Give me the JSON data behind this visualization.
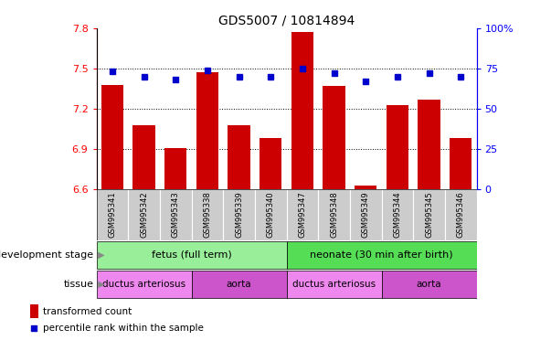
{
  "title": "GDS5007 / 10814894",
  "samples": [
    "GSM995341",
    "GSM995342",
    "GSM995343",
    "GSM995338",
    "GSM995339",
    "GSM995340",
    "GSM995347",
    "GSM995348",
    "GSM995349",
    "GSM995344",
    "GSM995345",
    "GSM995346"
  ],
  "bar_values": [
    7.38,
    7.08,
    6.91,
    7.47,
    7.08,
    6.98,
    7.77,
    7.37,
    6.63,
    7.23,
    7.27,
    6.98
  ],
  "percentile_values": [
    73,
    70,
    68,
    74,
    70,
    70,
    75,
    72,
    67,
    70,
    72,
    70
  ],
  "ylim_left": [
    6.6,
    7.8
  ],
  "ylim_right": [
    0,
    100
  ],
  "yticks_left": [
    6.6,
    6.9,
    7.2,
    7.5,
    7.8
  ],
  "yticks_right": [
    0,
    25,
    50,
    75,
    100
  ],
  "bar_color": "#cc0000",
  "dot_color": "#0000cc",
  "sample_bg_color": "#cccccc",
  "dev_stage_fetus_color": "#99ee99",
  "dev_stage_neonate_color": "#55dd55",
  "tissue_da_color": "#ee88ee",
  "tissue_aorta_color": "#cc55cc",
  "dev_stage_label": "development stage",
  "tissue_label": "tissue",
  "dev_stage_fetus_label": "fetus (full term)",
  "dev_stage_neonate_label": "neonate (30 min after birth)",
  "tissue_labels": [
    "ductus arteriosus",
    "aorta",
    "ductus arteriosus",
    "aorta"
  ],
  "legend_bar_label": "transformed count",
  "legend_dot_label": "percentile rank within the sample",
  "dotted_gridlines": [
    6.9,
    7.2,
    7.5
  ],
  "bar_width": 0.7
}
